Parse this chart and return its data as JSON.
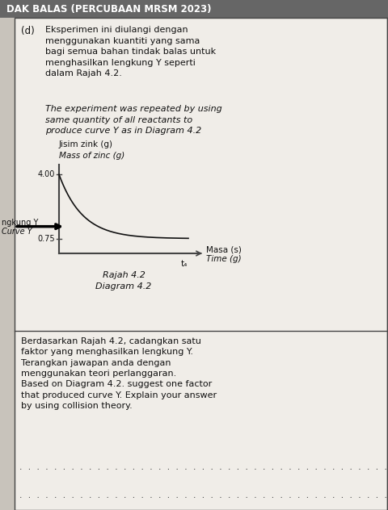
{
  "title": "DAK BALAS (PERCUBAAN MRSM 2023)",
  "section_label": "(d)",
  "malay_text": "Eksperimen ini diulangi dengan\nmenggunakan kuantiti yang sama\nbagi semua bahan tindak balas untuk\nmenghasilkan lengkung Y seperti\ndalam Rajah 4.2.",
  "english_text": "The experiment was repeated by using\nsame quantity of all reactants to\nproduce curve Y as in Diagram 4.2",
  "ylabel_malay": "Jisim zink (g)",
  "ylabel_english": "Mass of zinc (g)",
  "xlabel_malay": "Masa (s)",
  "xlabel_english": "Time (g)",
  "y_tick_top": 4.0,
  "y_tick_bottom": 0.75,
  "curve_label_malay": "ngkung Y",
  "curve_label_english": "Curve Y",
  "x_tick_label": "t₄",
  "diagram_label_1": "Rajah 4.2",
  "diagram_label_2": "Diagram 4.2",
  "question_text": "Berdasarkan Rajah 4.2, cadangkan satu\nfaktor yang menghasilkan lengkung Y.\nTerangkan jawapan anda dengan\nmenggunakan teori perlanggaran.\nBased on Diagram 4.2. suggest one factor\nthat produced curve Y. Explain your answer\nby using collision theory.",
  "bg_color": "#d4cfc7",
  "content_bg": "#e8e4de",
  "border_color": "#444444",
  "text_color": "#111111",
  "curve_color": "#111111",
  "title_bg": "#666666",
  "title_text_color": "#ffffff",
  "left_col_color": "#c8c3bb"
}
